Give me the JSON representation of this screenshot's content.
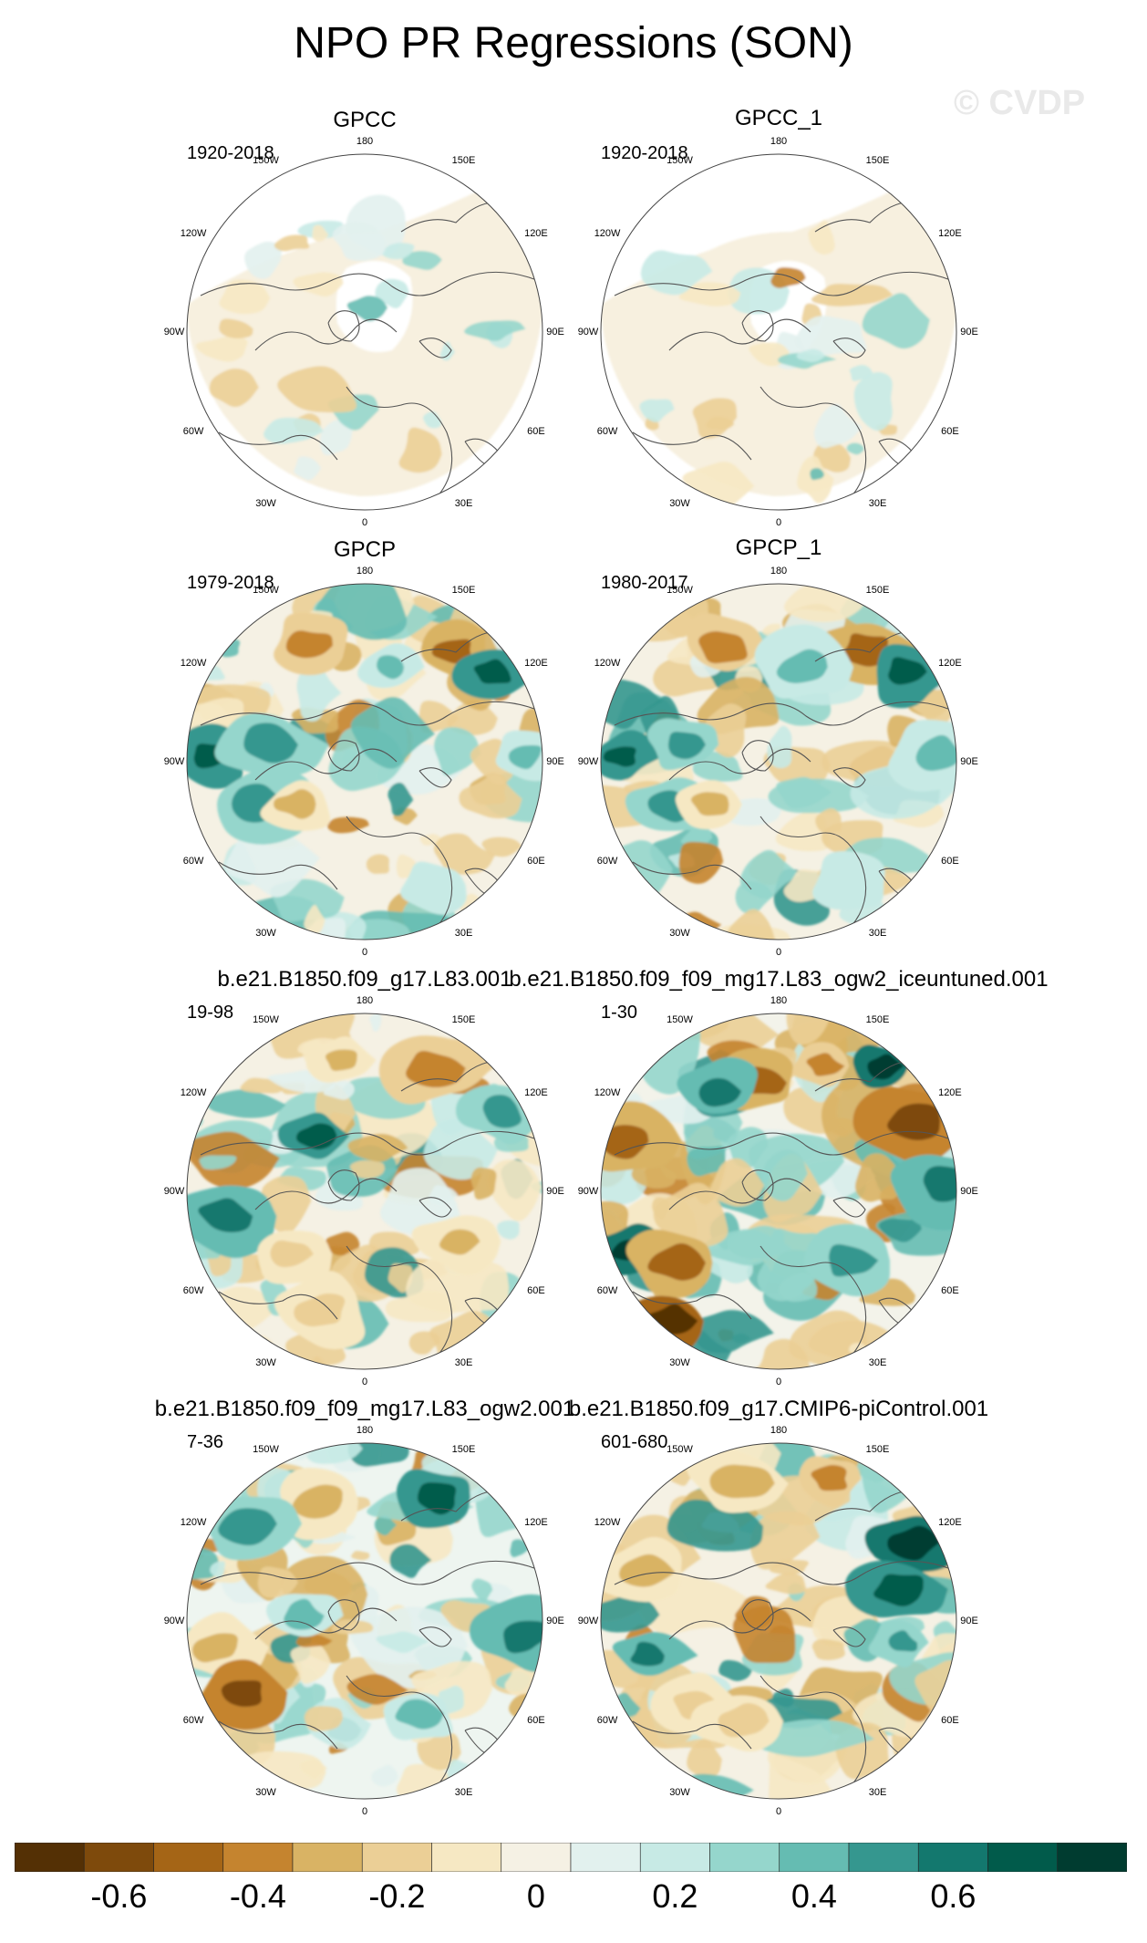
{
  "title": "NPO PR Regressions (SON)",
  "watermark": "© CVDP",
  "panels": [
    {
      "title": "GPCC",
      "period": "1920-2018",
      "style": "gpcc"
    },
    {
      "title": "GPCC_1",
      "period": "1920-2018",
      "style": "gpcc"
    },
    {
      "title": "GPCP",
      "period": "1979-2018",
      "style": "obs"
    },
    {
      "title": "GPCP_1",
      "period": "1980-2017",
      "style": "obs"
    },
    {
      "title": "b.e21.B1850.f09_g17.L83.001",
      "period": "19-98",
      "style": "model-a"
    },
    {
      "title": "b.e21.B1850.f09_f09_mg17.L83_ogw2_iceuntuned.001",
      "period": "1-30",
      "style": "model-b"
    },
    {
      "title": "b.e21.B1850.f09_f09_mg17.L83_ogw2.001",
      "period": "7-36",
      "style": "model-c"
    },
    {
      "title": "b.e21.B1850.f09_g17.CMIP6-piControl.001",
      "period": "601-680",
      "style": "model-d"
    }
  ],
  "longitude_labels": [
    "180",
    "150E",
    "120E",
    "90E",
    "60E",
    "30E",
    "0",
    "30W",
    "60W",
    "90W",
    "120W",
    "150W"
  ],
  "colorbar": {
    "colors": [
      "#543005",
      "#7e4a0c",
      "#a56516",
      "#c5842f",
      "#d9b364",
      "#ebcf96",
      "#f6e8c3",
      "#f5f1e4",
      "#e2f1ee",
      "#c7eae5",
      "#95d6cc",
      "#65bcb2",
      "#35978f",
      "#13786e",
      "#015b4b",
      "#003c30"
    ],
    "tick_labels": [
      "-0.6",
      "-0.4",
      "-0.2",
      "0",
      "0.2",
      "0.4",
      "0.6"
    ],
    "tick_boundary_index": [
      1,
      3,
      5,
      7,
      9,
      11,
      13
    ]
  }
}
